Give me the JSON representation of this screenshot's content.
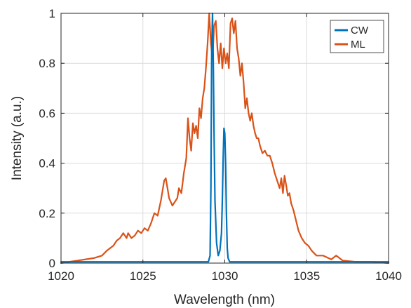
{
  "chart_data": {
    "type": "line",
    "xlabel": "Wavelength (nm)",
    "ylabel": "Intensity (a.u.)",
    "xlim": [
      1020,
      1040
    ],
    "ylim": [
      0,
      1
    ],
    "xticks": [
      1020,
      1025,
      1030,
      1035,
      1040
    ],
    "xtick_labels": [
      "1020",
      "1025",
      "1030",
      "1035",
      "1040"
    ],
    "yticks": [
      0,
      0.2,
      0.4,
      0.6,
      0.8,
      1
    ],
    "ytick_labels": [
      "0",
      "0.2",
      "0.4",
      "0.6",
      "0.8",
      "1"
    ],
    "grid": true,
    "legend_position": "top-right",
    "series": [
      {
        "name": "CW",
        "color": "#0072bd",
        "x": [
          1020,
          1026,
          1028,
          1029.0,
          1029.1,
          1029.15,
          1029.2,
          1029.25,
          1029.3,
          1029.35,
          1029.4,
          1029.5,
          1029.6,
          1029.7,
          1029.8,
          1029.85,
          1029.9,
          1029.95,
          1030.0,
          1030.05,
          1030.1,
          1030.15,
          1030.2,
          1030.3,
          1030.5,
          1032,
          1036,
          1040
        ],
        "y": [
          0.005,
          0.005,
          0.005,
          0.005,
          0.03,
          0.3,
          0.85,
          1.0,
          0.78,
          0.5,
          0.25,
          0.08,
          0.03,
          0.05,
          0.12,
          0.25,
          0.42,
          0.54,
          0.52,
          0.4,
          0.2,
          0.06,
          0.02,
          0.005,
          0.005,
          0.005,
          0.005,
          0.005
        ]
      },
      {
        "name": "ML",
        "color": "#d95319",
        "x": [
          1020,
          1021,
          1022,
          1022.5,
          1022.8,
          1023.0,
          1023.2,
          1023.4,
          1023.6,
          1023.8,
          1023.9,
          1024.0,
          1024.1,
          1024.3,
          1024.5,
          1024.7,
          1024.9,
          1025.1,
          1025.3,
          1025.5,
          1025.7,
          1025.9,
          1026.1,
          1026.3,
          1026.4,
          1026.5,
          1026.6,
          1026.8,
          1027.0,
          1027.1,
          1027.2,
          1027.35,
          1027.5,
          1027.65,
          1027.75,
          1027.85,
          1027.95,
          1028.05,
          1028.15,
          1028.25,
          1028.35,
          1028.45,
          1028.55,
          1028.65,
          1028.75,
          1028.85,
          1028.95,
          1029.05,
          1029.15,
          1029.25,
          1029.35,
          1029.45,
          1029.55,
          1029.65,
          1029.75,
          1029.85,
          1029.95,
          1030.05,
          1030.15,
          1030.25,
          1030.35,
          1030.45,
          1030.55,
          1030.65,
          1030.75,
          1030.85,
          1030.95,
          1031.05,
          1031.15,
          1031.25,
          1031.35,
          1031.45,
          1031.55,
          1031.65,
          1031.75,
          1031.85,
          1031.95,
          1032.05,
          1032.15,
          1032.3,
          1032.45,
          1032.6,
          1032.75,
          1032.9,
          1033.05,
          1033.2,
          1033.35,
          1033.45,
          1033.55,
          1033.65,
          1033.75,
          1033.85,
          1033.95,
          1034.05,
          1034.2,
          1034.35,
          1034.5,
          1034.7,
          1034.9,
          1035.1,
          1035.3,
          1035.6,
          1036.0,
          1036.5,
          1036.8,
          1037.2,
          1038,
          1039,
          1040
        ],
        "y": [
          0.0,
          0.01,
          0.02,
          0.03,
          0.05,
          0.06,
          0.07,
          0.09,
          0.1,
          0.12,
          0.11,
          0.1,
          0.12,
          0.1,
          0.11,
          0.13,
          0.12,
          0.14,
          0.13,
          0.16,
          0.2,
          0.19,
          0.25,
          0.33,
          0.34,
          0.3,
          0.26,
          0.23,
          0.25,
          0.26,
          0.3,
          0.28,
          0.36,
          0.42,
          0.58,
          0.5,
          0.45,
          0.56,
          0.52,
          0.55,
          0.5,
          0.62,
          0.58,
          0.66,
          0.7,
          0.78,
          0.88,
          1.0,
          0.88,
          0.82,
          0.95,
          0.97,
          0.86,
          0.8,
          0.88,
          0.78,
          0.86,
          0.8,
          0.84,
          0.78,
          0.96,
          0.98,
          0.92,
          0.97,
          0.86,
          0.82,
          0.75,
          0.8,
          0.72,
          0.62,
          0.66,
          0.6,
          0.57,
          0.6,
          0.55,
          0.52,
          0.5,
          0.5,
          0.47,
          0.44,
          0.45,
          0.43,
          0.43,
          0.4,
          0.36,
          0.33,
          0.3,
          0.34,
          0.28,
          0.35,
          0.31,
          0.27,
          0.28,
          0.24,
          0.21,
          0.17,
          0.13,
          0.1,
          0.08,
          0.07,
          0.05,
          0.03,
          0.03,
          0.015,
          0.03,
          0.01,
          0.005,
          0.005,
          0.0
        ]
      }
    ]
  }
}
